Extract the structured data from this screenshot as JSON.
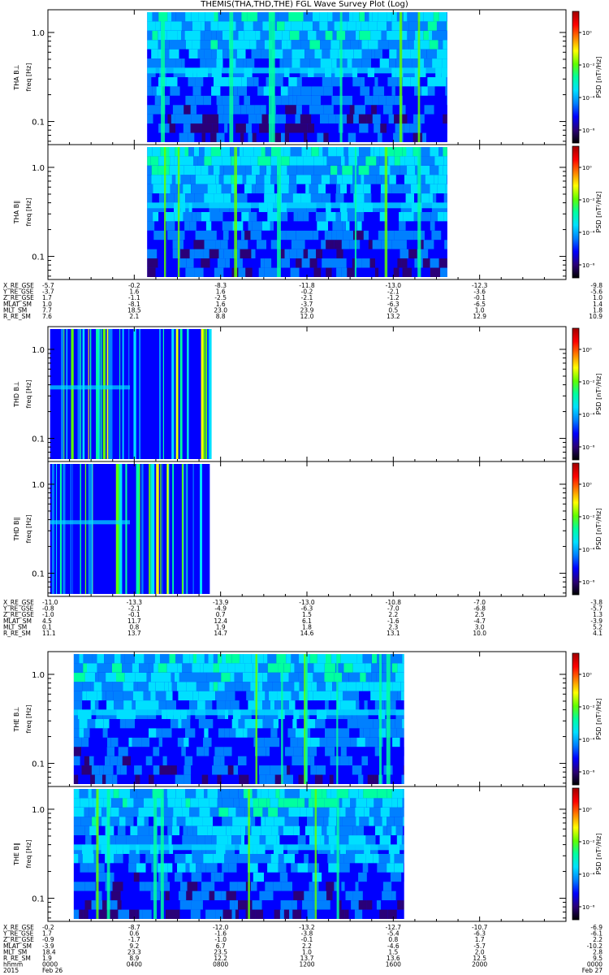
{
  "title": "THEMIS(THA,THD,THE) FGL Wave Survey Plot (Log)",
  "colors": {
    "colormap": [
      "#000000",
      "#2a0078",
      "#0000ff",
      "#0080ff",
      "#00e0ff",
      "#00ffa0",
      "#60ff00",
      "#ffff00",
      "#ff8000",
      "#ff0000",
      "#a00000"
    ]
  },
  "colorbar": {
    "label": "PSD [nT²/Hz]",
    "tick_labels": [
      "10⁰",
      "10⁻²",
      "10⁻⁴",
      "10⁻⁶"
    ]
  },
  "chart_data": {
    "type": "heatmap",
    "x_axis": {
      "range_hours": [
        0,
        24
      ],
      "tick_hours": [
        0,
        4,
        8,
        12,
        16,
        20,
        24
      ],
      "tick_labels_hhmm": [
        "0000",
        "0400",
        "0800",
        "1200",
        "1600",
        "2000",
        "0000"
      ],
      "tick_labels_date": [
        "Feb 26",
        "",
        "",
        "",
        "",
        "",
        "Feb 27"
      ],
      "row_label_hhmm": "hhmm",
      "row_label_year": "2015"
    },
    "y_axis": {
      "scale": "log",
      "range": [
        0.055,
        1.8
      ],
      "ticks": [
        0.1,
        1.0
      ],
      "tick_labels": [
        "0.1",
        "1.0"
      ]
    },
    "probes": [
      {
        "panels": [
          {
            "label": "THA B⊥",
            "unit": "freq [Hz]",
            "data_hours": [
              4.6,
              18.5
            ],
            "mode": "dense",
            "seed": 11
          },
          {
            "label": "THA B∥",
            "unit": "freq [Hz]",
            "data_hours": [
              4.6,
              18.5
            ],
            "mode": "dense",
            "seed": 23
          }
        ],
        "ephemeris": [
          {
            "label": "X_RE_GSE",
            "values": [
              "-5.7",
              "-0.2",
              "-8.3",
              "-11.8",
              "-13.0",
              "-12.3",
              "-9.8"
            ]
          },
          {
            "label": "Y_RE_GSE",
            "values": [
              "-3.7",
              "1.6",
              "1.6",
              "-0.2",
              "-2.1",
              "-3.6",
              "-5.6"
            ]
          },
          {
            "label": "Z_RE_GSE",
            "values": [
              "1.7",
              "-1.1",
              "-2.5",
              "-2.1",
              "-1.2",
              "-0.1",
              "1.0"
            ]
          },
          {
            "label": "MLAT_SM",
            "values": [
              "1.0",
              "-8.1",
              "1.6",
              "-3.7",
              "-6.3",
              "-6.5",
              "1.4"
            ]
          },
          {
            "label": "MLT_SM",
            "values": [
              "7.7",
              "18.5",
              "23.0",
              "23.9",
              "0.5",
              "1.0",
              "1.8"
            ]
          },
          {
            "label": "R_RE_SM",
            "values": [
              "7.6",
              "2.1",
              "8.8",
              "12.0",
              "13.2",
              "12.9",
              "10.9"
            ]
          }
        ]
      },
      {
        "panels": [
          {
            "label": "THD B⊥",
            "unit": "freq [Hz]",
            "data_hours": [
              0.1,
              7.5
            ],
            "mode": "striped",
            "seed": 37
          },
          {
            "label": "THD B∥",
            "unit": "freq [Hz]",
            "data_hours": [
              0.1,
              7.5
            ],
            "mode": "striped",
            "seed": 41
          }
        ],
        "ephemeris": [
          {
            "label": "X_RE_GSE",
            "values": [
              "-11.0",
              "-13.3",
              "-13.9",
              "-13.0",
              "-10.8",
              "-7.0",
              "-3.8"
            ]
          },
          {
            "label": "Y_RE_GSE",
            "values": [
              "-0.8",
              "-2.1",
              "-4.9",
              "-6.3",
              "-7.0",
              "-6.8",
              "-5.7"
            ]
          },
          {
            "label": "Z_RE_GSE",
            "values": [
              "-1.0",
              "-0.1",
              "0.7",
              "1.5",
              "2.2",
              "2.5",
              "1.3"
            ]
          },
          {
            "label": "MLAT_SM",
            "values": [
              "4.5",
              "11.7",
              "12.4",
              "6.1",
              "-1.6",
              "-4.7",
              "-3.9"
            ]
          },
          {
            "label": "MLT_SM",
            "values": [
              "0.1",
              "0.8",
              "1.9",
              "1.8",
              "2.3",
              "3.0",
              "5.2"
            ]
          },
          {
            "label": "R_RE_SM",
            "values": [
              "11.1",
              "13.7",
              "14.7",
              "14.6",
              "13.1",
              "10.0",
              "4.1"
            ]
          }
        ]
      },
      {
        "panels": [
          {
            "label": "THE B⊥",
            "unit": "freq [Hz]",
            "data_hours": [
              1.2,
              16.5
            ],
            "mode": "dense",
            "seed": 53
          },
          {
            "label": "THE B∥",
            "unit": "freq [Hz]",
            "data_hours": [
              1.2,
              16.5
            ],
            "mode": "dense",
            "seed": 67
          }
        ],
        "ephemeris": [
          {
            "label": "X_RE_GSE",
            "values": [
              "-0.2",
              "-8.7",
              "-12.0",
              "-13.2",
              "-12.7",
              "-10.7",
              "-6.9"
            ]
          },
          {
            "label": "Y_RE_GSE",
            "values": [
              "1.7",
              "0.6",
              "-1.6",
              "-3.8",
              "-5.4",
              "-6.3",
              "-6.1"
            ]
          },
          {
            "label": "Z_RE_GSE",
            "values": [
              "-0.9",
              "-1.7",
              "-1.0",
              "-0.1",
              "0.8",
              "1.7",
              "2.2"
            ]
          },
          {
            "label": "MLAT_SM",
            "values": [
              "-3.9",
              "9.2",
              "6.7",
              "2.2",
              "-4.6",
              "-5.7",
              "-10.2"
            ]
          },
          {
            "label": "MLT_SM",
            "values": [
              "18.4",
              "23.3",
              "23.5",
              "1.0",
              "1.5",
              "2.0",
              "2.8"
            ]
          },
          {
            "label": "R_RE_SM",
            "values": [
              "1.9",
              "8.9",
              "12.2",
              "13.7",
              "13.6",
              "12.5",
              "9.5"
            ]
          }
        ]
      }
    ]
  }
}
